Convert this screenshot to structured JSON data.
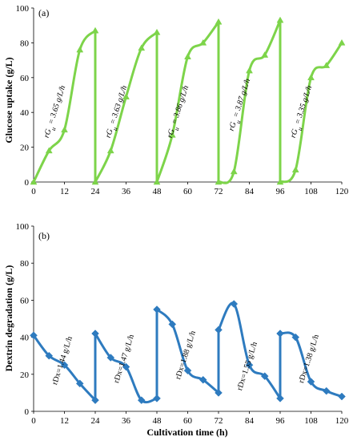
{
  "chart_data": [
    {
      "type": "line",
      "panel_label": "(a)",
      "ylabel": "Glucose uptake (g/L)",
      "xlabel": "",
      "xlim": [
        0,
        120
      ],
      "ylim": [
        0,
        100
      ],
      "xticks": [
        0,
        12,
        24,
        36,
        48,
        60,
        72,
        84,
        96,
        108,
        120
      ],
      "yticks": [
        0,
        20,
        40,
        60,
        80,
        100
      ],
      "color": "#7dd44a",
      "marker": "triangle",
      "segments": [
        [
          [
            0,
            0
          ],
          [
            6,
            18
          ],
          [
            12,
            30
          ],
          [
            18,
            76
          ],
          [
            24,
            87
          ]
        ],
        [
          [
            24,
            0
          ],
          [
            30,
            18
          ],
          [
            36,
            49
          ],
          [
            42,
            77
          ],
          [
            48,
            86
          ]
        ],
        [
          [
            48,
            0
          ],
          [
            54,
            27
          ],
          [
            60,
            72
          ],
          [
            66,
            80
          ],
          [
            72,
            92
          ]
        ],
        [
          [
            72,
            0
          ],
          [
            78,
            6
          ],
          [
            84,
            64
          ],
          [
            90,
            73
          ],
          [
            96,
            93
          ]
        ],
        [
          [
            96,
            0
          ],
          [
            102,
            7
          ],
          [
            108,
            60
          ],
          [
            114,
            67
          ],
          [
            120,
            80
          ]
        ]
      ],
      "annotations": [
        {
          "text": "rG",
          "sub": "u",
          "rest": " = 3.65 g/L/h",
          "x": 9,
          "y": 40
        },
        {
          "text": "rG",
          "sub": "u",
          "rest": " = 3.63 g/L/h",
          "x": 33,
          "y": 40
        },
        {
          "text": "rG",
          "sub": "u",
          "rest": " = 3.86 g/L/h",
          "x": 57,
          "y": 40
        },
        {
          "text": "rG",
          "sub": "u",
          "rest": " = 3.87 g/L/h",
          "x": 81,
          "y": 44
        },
        {
          "text": "rG",
          "sub": "u",
          "rest": " = 3.35 g/L/h",
          "x": 105,
          "y": 40
        }
      ]
    },
    {
      "type": "line",
      "panel_label": "(b)",
      "ylabel": "Dextrin degradation (g/L)",
      "xlabel": "Cultivation time (h)",
      "xlim": [
        0,
        120
      ],
      "ylim": [
        0,
        100
      ],
      "xticks": [
        0,
        12,
        24,
        36,
        48,
        60,
        72,
        84,
        96,
        108,
        120
      ],
      "yticks": [
        0,
        20,
        40,
        60,
        80,
        100
      ],
      "color": "#2e7bbf",
      "marker": "diamond",
      "segments": [
        [
          [
            0,
            41
          ],
          [
            6,
            30
          ],
          [
            12,
            25
          ],
          [
            18,
            15
          ],
          [
            24,
            6
          ]
        ],
        [
          [
            24,
            42
          ],
          [
            30,
            29
          ],
          [
            36,
            24
          ],
          [
            42,
            6
          ],
          [
            48,
            7
          ]
        ],
        [
          [
            48,
            55
          ],
          [
            54,
            47
          ],
          [
            60,
            22
          ],
          [
            66,
            17
          ],
          [
            72,
            10
          ]
        ],
        [
          [
            72,
            44
          ],
          [
            78,
            58
          ],
          [
            84,
            25
          ],
          [
            90,
            19
          ],
          [
            96,
            7
          ]
        ],
        [
          [
            96,
            42
          ],
          [
            102,
            40
          ],
          [
            108,
            16
          ],
          [
            114,
            11
          ],
          [
            120,
            8
          ]
        ]
      ],
      "annotations": [
        {
          "text": "rDx=1.44 g/L/h",
          "x": 12,
          "y": 27
        },
        {
          "text": "rDx=1.47 g/L/h",
          "x": 36,
          "y": 28
        },
        {
          "text": "rDx=1.88 g/L/h",
          "x": 60,
          "y": 30
        },
        {
          "text": "rDx=1.55 g/L/h",
          "x": 84,
          "y": 24
        },
        {
          "text": "rDx=1.38 g/L/h",
          "x": 108,
          "y": 28
        }
      ]
    }
  ]
}
